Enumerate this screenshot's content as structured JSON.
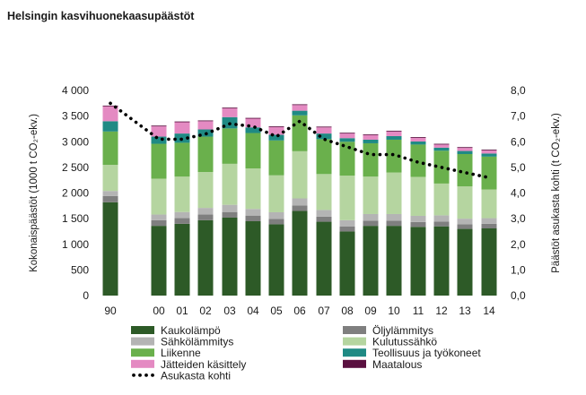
{
  "chart_data": {
    "type": "bar",
    "title": "Helsingin kasvihuonekaasupäästöt",
    "ylabel_left": "Kokonaispäästöt (1000 t CO₂-ekv.)",
    "ylabel_right": "Päästöt asukasta kohti (t CO₂-ekv.)",
    "ylim_left": [
      0,
      4000
    ],
    "ylim_right": [
      0,
      8
    ],
    "yticks_left": [
      "0",
      "500",
      "1 000",
      "1 500",
      "2 000",
      "2 500",
      "3 000",
      "3 500",
      "4 000"
    ],
    "yticks_right": [
      "0,0",
      "1,0",
      "2,0",
      "3,0",
      "4,0",
      "5,0",
      "6,0",
      "7,0",
      "8,0"
    ],
    "categories": [
      "90",
      "00",
      "01",
      "02",
      "03",
      "04",
      "05",
      "06",
      "07",
      "08",
      "09",
      "10",
      "11",
      "12",
      "13",
      "14"
    ],
    "stack_series": [
      {
        "name": "Kaukolämpö",
        "color": "#2d5a27",
        "values": [
          1820,
          1360,
          1400,
          1470,
          1520,
          1450,
          1390,
          1650,
          1440,
          1250,
          1360,
          1360,
          1340,
          1350,
          1300,
          1310
        ]
      },
      {
        "name": "Öljylämmitys",
        "color": "#7f7f7f",
        "values": [
          120,
          110,
          110,
          110,
          110,
          110,
          105,
          105,
          100,
          100,
          100,
          100,
          95,
          95,
          90,
          90
        ]
      },
      {
        "name": "Sähkölämmitys",
        "color": "#b4b4b4",
        "values": [
          100,
          110,
          120,
          130,
          140,
          130,
          130,
          140,
          130,
          120,
          130,
          130,
          120,
          120,
          110,
          110
        ]
      },
      {
        "name": "Kulutussähkö",
        "color": "#b5d5a0",
        "values": [
          510,
          700,
          690,
          700,
          800,
          790,
          720,
          920,
          700,
          870,
          730,
          810,
          760,
          620,
          630,
          560
        ]
      },
      {
        "name": "Liikenne",
        "color": "#6ab04c",
        "values": [
          650,
          680,
          660,
          690,
          690,
          690,
          680,
          700,
          680,
          660,
          650,
          640,
          630,
          640,
          630,
          640
        ]
      },
      {
        "name": "Teollisuus ja työkoneet",
        "color": "#1f8a84",
        "values": [
          200,
          140,
          180,
          140,
          220,
          110,
          110,
          90,
          110,
          70,
          70,
          70,
          60,
          60,
          60,
          60
        ]
      },
      {
        "name": "Jätteiden käsittely",
        "color": "#e48ac2",
        "values": [
          290,
          200,
          220,
          160,
          170,
          170,
          150,
          110,
          120,
          90,
          90,
          90,
          70,
          60,
          60,
          60
        ]
      },
      {
        "name": "Maatalous",
        "color": "#5a1040",
        "values": [
          15,
          15,
          15,
          15,
          15,
          15,
          15,
          15,
          15,
          15,
          15,
          15,
          15,
          15,
          15,
          15
        ]
      }
    ],
    "line_series": {
      "name": "Asukasta kohti",
      "color": "#000000",
      "axis": "right",
      "values": [
        7.5,
        6.1,
        6.1,
        6.3,
        6.7,
        6.6,
        6.2,
        6.8,
        6.1,
        5.8,
        5.5,
        5.5,
        5.2,
        5.0,
        4.8,
        4.6
      ]
    },
    "legend": [
      {
        "name": "Kaukolämpö",
        "color": "#2d5a27",
        "kind": "box"
      },
      {
        "name": "Öljylämmitys",
        "color": "#7f7f7f",
        "kind": "box"
      },
      {
        "name": "Sähkölämmitys",
        "color": "#b4b4b4",
        "kind": "box"
      },
      {
        "name": "Kulutussähkö",
        "color": "#b5d5a0",
        "kind": "box"
      },
      {
        "name": "Liikenne",
        "color": "#6ab04c",
        "kind": "box"
      },
      {
        "name": "Teollisuus ja työkoneet",
        "color": "#1f8a84",
        "kind": "box"
      },
      {
        "name": "Jätteiden käsittely",
        "color": "#e48ac2",
        "kind": "box"
      },
      {
        "name": "Maatalous",
        "color": "#5a1040",
        "kind": "box"
      },
      {
        "name": "Asukasta kohti",
        "color": "#000000",
        "kind": "dots"
      }
    ],
    "legend_position": "bottom",
    "grid": false
  }
}
